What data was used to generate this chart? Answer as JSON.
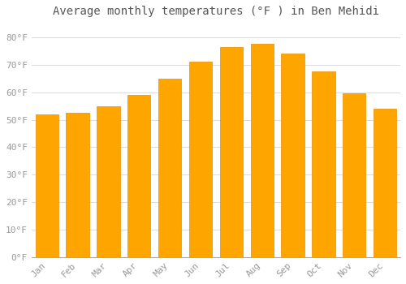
{
  "title": "Average monthly temperatures (°F ) in Ben Mehidi",
  "months": [
    "Jan",
    "Feb",
    "Mar",
    "Apr",
    "May",
    "Jun",
    "Jul",
    "Aug",
    "Sep",
    "Oct",
    "Nov",
    "Dec"
  ],
  "values": [
    52,
    52.5,
    55,
    59,
    65,
    71,
    76.5,
    77.5,
    74,
    67.5,
    59.5,
    54
  ],
  "bar_color": "#FFA500",
  "bar_edge_color": "#FF8C00",
  "background_color": "#FFFFFF",
  "grid_color": "#DDDDDD",
  "yticks": [
    0,
    10,
    20,
    30,
    40,
    50,
    60,
    70,
    80
  ],
  "ylim": [
    0,
    85
  ],
  "title_fontsize": 10,
  "tick_fontsize": 8,
  "title_color": "#555555",
  "tick_color": "#999999"
}
